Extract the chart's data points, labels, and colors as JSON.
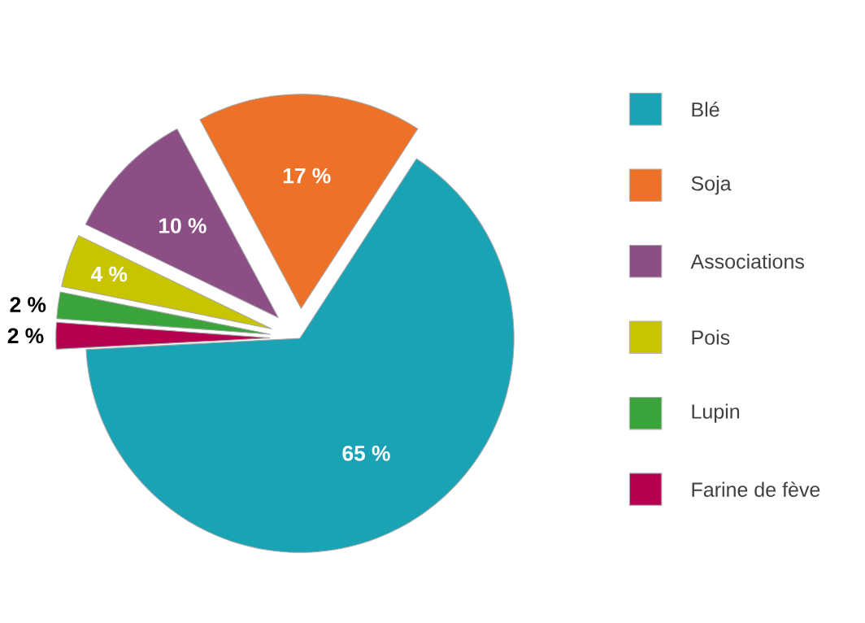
{
  "chart_data": {
    "type": "pie",
    "categories": [
      "Blé",
      "Soja",
      "Associations",
      "Pois",
      "Lupin",
      "Farine de fève"
    ],
    "values": [
      65,
      17,
      10,
      4,
      2,
      2
    ],
    "colors": [
      "#1aa3b4",
      "#ee7128",
      "#8c4f85",
      "#c8c400",
      "#3aa33a",
      "#b5004f"
    ],
    "value_labels": [
      "65 %",
      "17 %",
      "10 %",
      "4 %",
      "2 %",
      "2 %"
    ],
    "legend": "right"
  }
}
